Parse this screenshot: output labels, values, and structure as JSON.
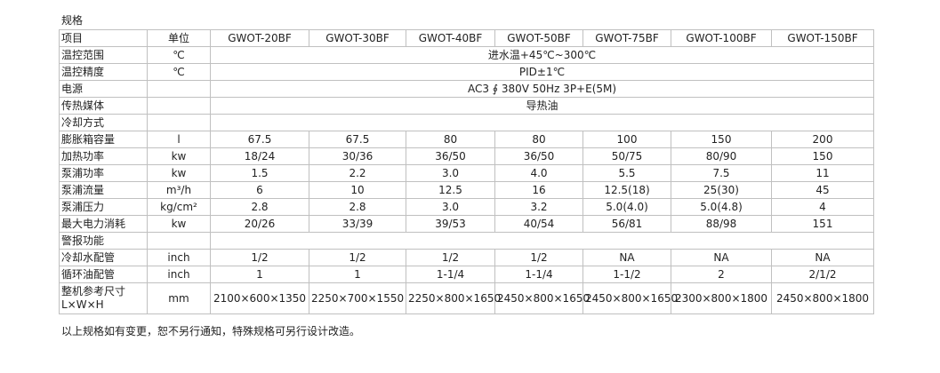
{
  "title": "规格",
  "table": {
    "header": [
      "项目",
      "单位",
      "GWOT-20BF",
      "GWOT-30BF",
      "GWOT-40BF",
      "GWOT-50BF",
      "GWOT-75BF",
      "GWOT-100BF",
      "GWOT-150BF"
    ],
    "rows": [
      [
        "温控范围",
        "℃",
        "进水温+45℃~300℃"
      ],
      [
        "温控精度",
        "℃",
        "PID±1℃"
      ],
      [
        "电源",
        "",
        "AC3 ∮ 380V 50Hz 3P+E(5M)"
      ],
      [
        "传热媒体",
        "",
        "导热油"
      ],
      [
        "冷却方式"
      ],
      [
        "膨胀箱容量",
        "l",
        "67.5",
        "67.5",
        "80",
        "80",
        "100",
        "150",
        "200"
      ],
      [
        "加热功率",
        "kw",
        "18/24",
        "30/36",
        "36/50",
        "36/50",
        "50/75",
        "80/90",
        "150"
      ],
      [
        "泵浦功率",
        "kw",
        "1.5",
        "2.2",
        "3.0",
        "4.0",
        "5.5",
        "7.5",
        "11"
      ],
      [
        "泵浦流量",
        "m³/h",
        "6",
        "10",
        "12.5",
        "16",
        "12.5(18)",
        "25(30)",
        "45"
      ],
      [
        "泵浦压力",
        "kg/cm²",
        "2.8",
        "2.8",
        "3.0",
        "3.2",
        "5.0(4.0)",
        "5.0(4.8)",
        "4"
      ],
      [
        "最大电力消耗",
        "kw",
        "20/26",
        "33/39",
        "39/53",
        "40/54",
        "56/81",
        "88/98",
        "151"
      ],
      [
        "警报功能"
      ],
      [
        "冷却水配管",
        "inch",
        "1/2",
        "1/2",
        "1/2",
        "1/2",
        "NA",
        "NA",
        "NA"
      ],
      [
        "循环油配管",
        "inch",
        "1",
        "1",
        "1-1/4",
        "1-1/4",
        "1-1/2",
        "2",
        "2/1/2"
      ],
      [
        "整机参考尺寸\nL×W×H",
        "mm",
        "2100×600×1350",
        "2250×700×1550",
        "2250×800×1650",
        "2450×800×1650",
        "2450×800×1650",
        "2300×800×1800",
        "2450×800×1800"
      ]
    ]
  },
  "footer": "以上规格如有变更，恕不另行通知，特殊规格可另行设计改造。"
}
